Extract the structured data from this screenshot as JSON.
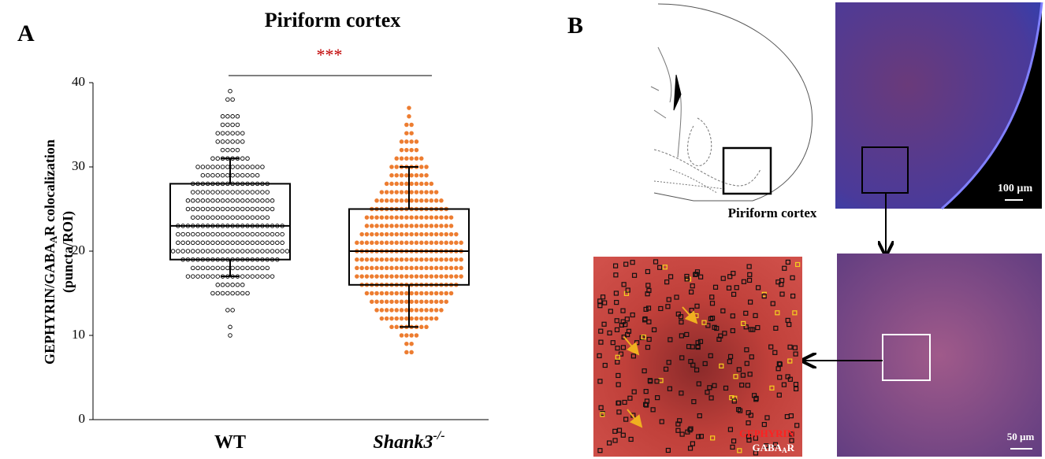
{
  "panel_labels": [
    "A",
    "B"
  ],
  "chart_data": {
    "type": "box-dot",
    "title": "Piriform cortex",
    "y_label": {
      "pre": "GEPHYRIN/GABA",
      "sub": "A",
      "post": "R colocalization",
      "line2": "(puncta/ROI)"
    },
    "categories": [
      {
        "main": "WT"
      },
      {
        "main": "Shank3",
        "sup": "-/-"
      }
    ],
    "significance": "***",
    "ylim": [
      0,
      40
    ],
    "yticks": [
      0,
      10,
      20,
      30,
      40
    ],
    "series": [
      {
        "color": "#ffffff",
        "edge": "#000000",
        "levels": [
          10,
          11,
          13,
          15,
          16,
          17,
          18,
          19,
          20,
          21,
          22,
          23,
          24,
          25,
          26,
          27,
          28,
          29,
          30,
          31,
          32,
          33,
          34,
          35,
          36,
          38,
          39
        ],
        "counts": [
          1,
          1,
          2,
          8,
          6,
          18,
          16,
          20,
          24,
          22,
          22,
          22,
          16,
          18,
          18,
          16,
          16,
          12,
          14,
          8,
          4,
          6,
          6,
          4,
          4,
          2,
          1
        ],
        "box": {
          "whisker_low": 17,
          "q1": 19,
          "median": 23,
          "q3": 28,
          "whisker_high": 31
        }
      },
      {
        "color": "#ed7d31",
        "edge": "#ed7d31",
        "levels": [
          8,
          9,
          10,
          11,
          12,
          13,
          14,
          15,
          16,
          17,
          18,
          19,
          20,
          21,
          22,
          23,
          24,
          25,
          26,
          27,
          28,
          29,
          30,
          31,
          32,
          33,
          34,
          35,
          36,
          37
        ],
        "counts": [
          2,
          2,
          4,
          8,
          12,
          14,
          16,
          18,
          20,
          22,
          22,
          22,
          22,
          22,
          20,
          18,
          18,
          16,
          14,
          12,
          10,
          8,
          8,
          6,
          4,
          4,
          2,
          2,
          1,
          1
        ],
        "box": {
          "whisker_low": 11,
          "q1": 16,
          "median": 20,
          "q3": 25,
          "whisker_high": 30
        }
      }
    ]
  },
  "panel_b": {
    "region_label": "Piriform cortex",
    "scale_top": "100 µm",
    "scale_bottom": "50 µm",
    "marker_1": "GEPHYRIN",
    "marker_2": {
      "pre": "GABA",
      "sub": "A",
      "post": "R"
    }
  }
}
